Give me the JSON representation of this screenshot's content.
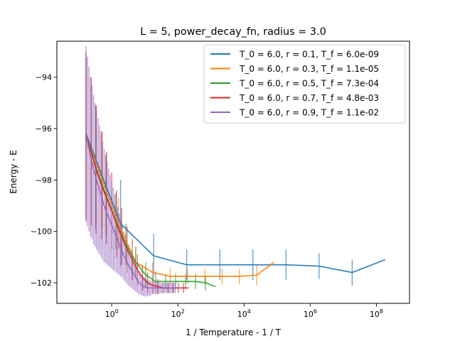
{
  "chart_data": {
    "type": "line",
    "title": "L = 5, power_decay_fn, radius = 3.0",
    "xlabel": "1 / Temperature - 1 / T",
    "ylabel": "Energy - E",
    "xscale": "log",
    "xlim": [
      0.022,
      1000000000.0
    ],
    "ylim": [
      -102.8,
      -92.6
    ],
    "xticks": [
      {
        "value": 1,
        "label": "10",
        "exp": "0"
      },
      {
        "value": 100,
        "label": "10",
        "exp": "2"
      },
      {
        "value": 10000,
        "label": "10",
        "exp": "4"
      },
      {
        "value": 1000000,
        "label": "10",
        "exp": "6"
      },
      {
        "value": 100000000,
        "label": "10",
        "exp": "8"
      }
    ],
    "yticks": [
      {
        "value": -94,
        "label": "−94"
      },
      {
        "value": -96,
        "label": "−96"
      },
      {
        "value": -98,
        "label": "−98"
      },
      {
        "value": -100,
        "label": "−100"
      },
      {
        "value": -102,
        "label": "−102"
      }
    ],
    "legend_position": "top-right",
    "series": [
      {
        "name": "T_0 = 6.0, r = 0.1, T_f = 6.0e-09",
        "color": "#1f77b4",
        "x": [
          0.167,
          1.85,
          18.5,
          185,
          1850,
          18500,
          185000,
          1850000,
          18500000,
          185000000
        ],
        "y": [
          -96.2,
          -99.7,
          -100.95,
          -101.3,
          -101.3,
          -101.3,
          -101.3,
          -101.35,
          -101.6,
          -101.1
        ],
        "err": [
          3.0,
          1.7,
          0.85,
          0.6,
          0.6,
          0.6,
          0.6,
          0.5,
          0.5,
          0.0
        ]
      },
      {
        "name": "T_0 = 6.0, r = 0.3, T_f = 1.1e-05",
        "color": "#ff7f0e",
        "x": [
          0.167,
          0.52,
          1.6,
          5.3,
          17.3,
          58.5,
          195,
          650,
          2180,
          7250,
          24200,
          80000
        ],
        "y": [
          -96.3,
          -98.0,
          -99.7,
          -101.2,
          -101.6,
          -101.75,
          -101.75,
          -101.75,
          -101.75,
          -101.75,
          -101.7,
          -101.2
        ],
        "err": [
          3.0,
          1.9,
          1.0,
          0.6,
          0.4,
          0.3,
          0.3,
          0.3,
          0.3,
          0.3,
          0.4,
          0.0
        ]
      },
      {
        "name": "T_0 = 6.0, r = 0.5, T_f = 7.3e-04",
        "color": "#2ca02c",
        "x": [
          0.167,
          0.33,
          0.67,
          1.33,
          2.67,
          5.33,
          10.7,
          21.3,
          42.7,
          85.3,
          171,
          341,
          683,
          1365
        ],
        "y": [
          -96.3,
          -97.5,
          -98.6,
          -99.6,
          -100.5,
          -101.2,
          -101.7,
          -101.95,
          -101.95,
          -101.95,
          -101.95,
          -101.95,
          -102.0,
          -102.15
        ],
        "err": [
          3.2,
          2.4,
          1.6,
          1.1,
          0.8,
          0.6,
          0.5,
          0.4,
          0.3,
          0.3,
          0.3,
          0.3,
          0.3,
          0.0
        ]
      },
      {
        "name": "T_0 = 6.0, r = 0.7, T_f = 4.8e-03",
        "color": "#d62728",
        "x": [
          0.167,
          0.24,
          0.34,
          0.49,
          0.7,
          1.0,
          1.4,
          2.0,
          2.9,
          4.2,
          6.0,
          8.5,
          12.2,
          17.4,
          24.9,
          35.5,
          50.7,
          72.5,
          103,
          148,
          211
        ],
        "y": [
          -96.3,
          -96.9,
          -97.6,
          -98.2,
          -98.7,
          -99.2,
          -99.7,
          -100.2,
          -100.7,
          -101.1,
          -101.5,
          -101.8,
          -102.0,
          -102.1,
          -102.15,
          -102.2,
          -102.2,
          -102.2,
          -102.2,
          -102.2,
          -102.2
        ],
        "err": [
          3.3,
          2.9,
          2.5,
          2.1,
          1.8,
          1.5,
          1.3,
          1.1,
          0.9,
          0.8,
          0.6,
          0.5,
          0.4,
          0.3,
          0.3,
          0.2,
          0.2,
          0.2,
          0.2,
          0.2,
          0.0
        ]
      },
      {
        "name": "T_0 = 6.0, r = 0.9, T_f = 1.1e-02",
        "color": "#9467bd",
        "x": [
          0.167,
          0.185,
          0.206,
          0.229,
          0.254,
          0.282,
          0.314,
          0.348,
          0.387,
          0.43,
          0.478,
          0.531,
          0.59,
          0.655,
          0.728,
          0.809,
          0.899,
          1.0,
          1.11,
          1.23,
          1.37,
          1.52,
          1.69,
          1.88,
          2.09,
          2.32,
          2.58,
          2.86,
          3.18,
          3.53,
          3.92,
          4.36,
          4.84,
          5.38,
          5.98,
          6.64,
          7.38,
          8.2,
          9.11,
          10.1,
          11.2,
          12.5,
          13.9,
          15.4,
          17.1,
          19.0,
          21.1,
          23.5,
          26.1,
          29.0,
          32.2,
          35.8,
          39.8,
          44.2,
          49.1,
          54.6,
          60.6,
          67.4,
          74.8,
          83.2,
          92.4
        ],
        "y": [
          -96.2,
          -96.5,
          -96.8,
          -97.1,
          -97.3,
          -97.6,
          -97.8,
          -98.0,
          -98.2,
          -98.4,
          -98.6,
          -98.8,
          -99.0,
          -99.15,
          -99.3,
          -99.45,
          -99.6,
          -99.75,
          -99.9,
          -100.05,
          -100.2,
          -100.35,
          -100.5,
          -100.65,
          -100.8,
          -100.95,
          -101.05,
          -101.2,
          -101.3,
          -101.4,
          -101.5,
          -101.6,
          -101.7,
          -101.8,
          -101.9,
          -102.0,
          -102.05,
          -102.1,
          -102.15,
          -102.15,
          -102.2,
          -102.2,
          -102.2,
          -102.2,
          -102.2,
          -102.2,
          -102.2,
          -102.2,
          -102.2,
          -102.2,
          -102.2,
          -102.2,
          -102.2,
          -102.2,
          -102.2,
          -102.2,
          -102.2,
          -102.2,
          -102.2,
          -102.2,
          -102.2
        ],
        "err": [
          3.4,
          3.3,
          3.2,
          3.1,
          3.0,
          2.9,
          2.8,
          2.7,
          2.6,
          2.5,
          2.4,
          2.3,
          2.2,
          2.1,
          2.0,
          1.9,
          1.8,
          1.7,
          1.6,
          1.5,
          1.4,
          1.3,
          1.2,
          1.1,
          1.0,
          0.95,
          0.9,
          0.85,
          0.8,
          0.75,
          0.7,
          0.65,
          0.6,
          0.55,
          0.5,
          0.45,
          0.42,
          0.4,
          0.38,
          0.36,
          0.34,
          0.32,
          0.3,
          0.28,
          0.26,
          0.25,
          0.24,
          0.23,
          0.22,
          0.21,
          0.2,
          0.2,
          0.2,
          0.2,
          0.2,
          0.2,
          0.2,
          0.2,
          0.2,
          0.2,
          0.0
        ]
      }
    ]
  }
}
